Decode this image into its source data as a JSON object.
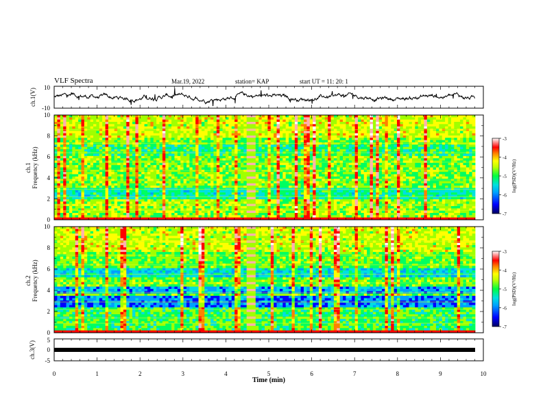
{
  "header": {
    "title": "VLF Spectra",
    "date": "Mar.19, 2022",
    "station": "station= KAP",
    "start_ut": "start UT =  11: 20: 1"
  },
  "chart_data": [
    {
      "type": "line",
      "ylabel": "ch.1(V)",
      "xlim": [
        0,
        10
      ],
      "ylim": [
        -10,
        10
      ],
      "yticks": [
        "10",
        "-10"
      ],
      "note": "continuous noisy voltage waveform, roughly -4 to +4 V, data ends at ~9.8 min"
    },
    {
      "type": "heatmap",
      "ylabel_top": "ch.1",
      "ylabel": "Frequency (kHz)",
      "xlim": [
        0,
        10
      ],
      "ylim": [
        0,
        10
      ],
      "yticks": [
        "0",
        "2",
        "4",
        "6",
        "8",
        "10"
      ],
      "colorbar": {
        "label": "log(PSD)(V²/Hz)",
        "range": [
          -7,
          -3
        ],
        "ticks": [
          "-3",
          "-4",
          "-5",
          "-6",
          "-7"
        ]
      },
      "colormap": [
        "#000080",
        "#0000ff",
        "#00a0ff",
        "#00e0e0",
        "#00ff60",
        "#a0ff00",
        "#ffff00",
        "#ff8000",
        "#ff0000",
        "#ffb0b0",
        "#ffffff"
      ]
    },
    {
      "type": "heatmap",
      "ylabel_top": "ch.2",
      "ylabel": "Frequency (kHz)",
      "xlim": [
        0,
        10
      ],
      "ylim": [
        0,
        10
      ],
      "yticks": [
        "0",
        "2",
        "4",
        "6",
        "8",
        "10"
      ],
      "colorbar": {
        "label": "log(PSD)(V²/Hz)",
        "range": [
          -7,
          -3
        ],
        "ticks": [
          "-3",
          "-4",
          "-5",
          "-6",
          "-7"
        ]
      }
    },
    {
      "type": "line",
      "ylabel": "ch.3(V)",
      "xlabel": "Time (min)",
      "xlim": [
        0,
        10
      ],
      "ylim": [
        -5,
        5
      ],
      "yticks": [
        "5",
        "0",
        "-5"
      ],
      "xticks": [
        "0",
        "1",
        "2",
        "3",
        "4",
        "5",
        "6",
        "7",
        "8",
        "9",
        "10"
      ],
      "note": "dense square-wave signal near 0 V"
    }
  ]
}
